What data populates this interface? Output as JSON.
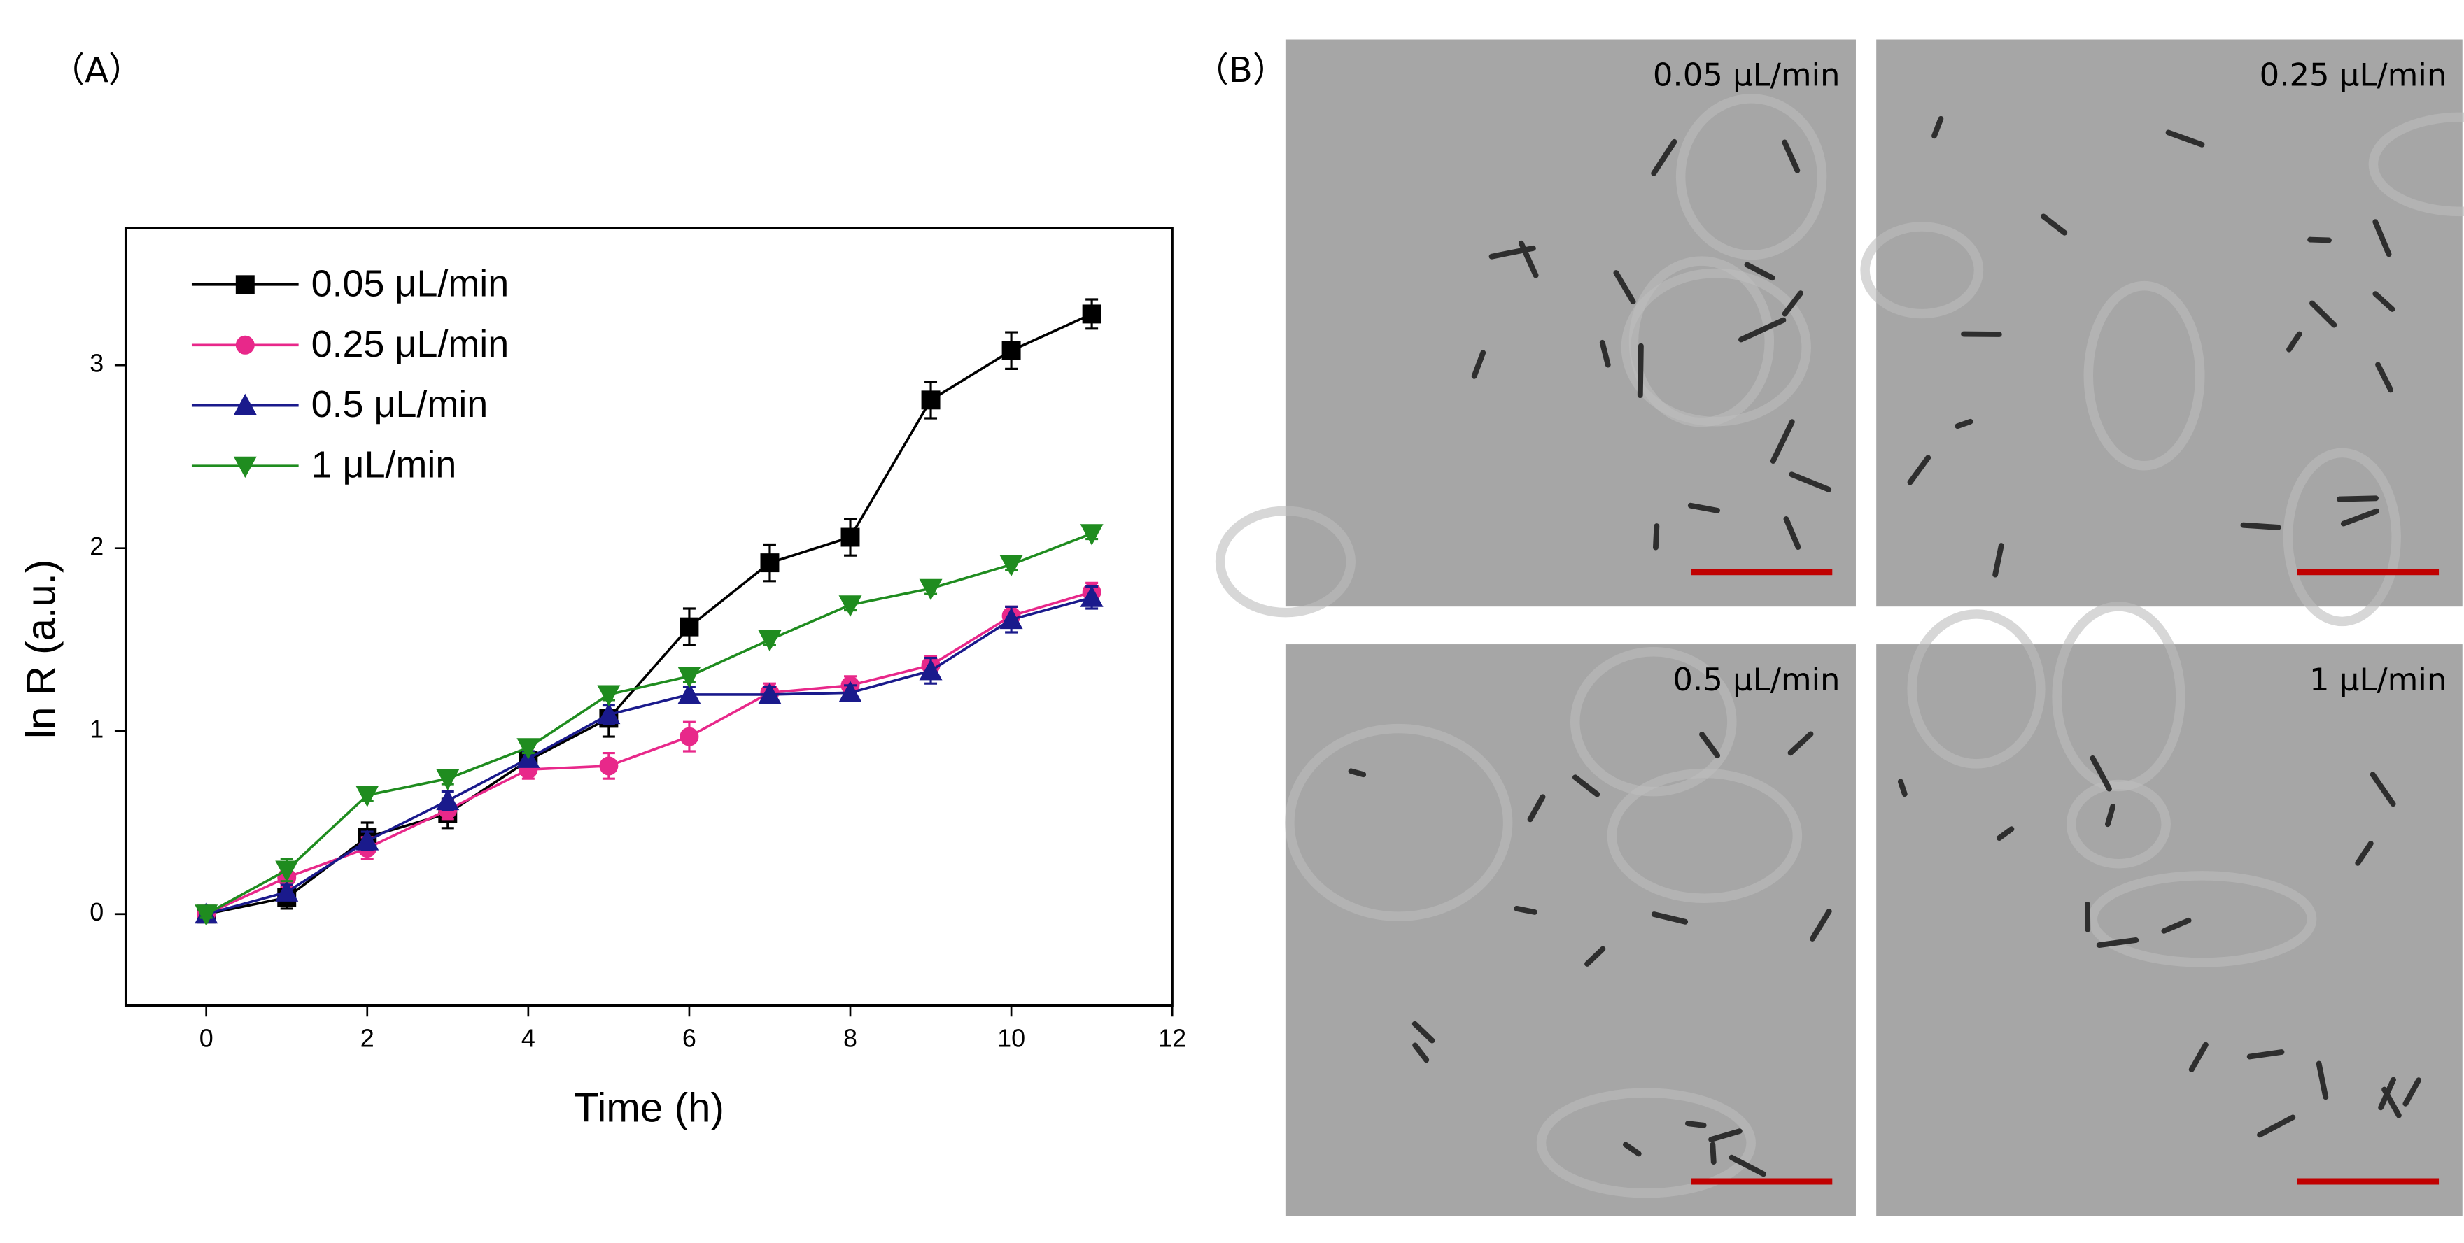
{
  "chart_data": {
    "type": "line",
    "xlabel": "Time (h)",
    "ylabel": "ln R (a.u.)",
    "x": [
      0,
      1,
      2,
      3,
      4,
      5,
      6,
      7,
      8,
      9,
      10,
      11
    ],
    "xlim": [
      -1,
      12
    ],
    "xticks": [
      0,
      2,
      4,
      6,
      8,
      10,
      12
    ],
    "ylim": [
      -0.5,
      3.75
    ],
    "yticks": [
      0,
      1,
      2,
      3
    ],
    "legend": "upper left",
    "series": [
      {
        "name": "0.05 μL/min",
        "color": "#000000",
        "marker": "square",
        "values": [
          0,
          0.09,
          0.42,
          0.55,
          0.84,
          1.07,
          1.57,
          1.92,
          2.06,
          2.81,
          3.08,
          3.28
        ],
        "errors": [
          0.03,
          0.06,
          0.08,
          0.08,
          0.04,
          0.1,
          0.1,
          0.1,
          0.1,
          0.1,
          0.1,
          0.08
        ]
      },
      {
        "name": "0.25 μL/min",
        "color": "#e8288a",
        "marker": "circle",
        "values": [
          0,
          0.2,
          0.36,
          0.57,
          0.79,
          0.81,
          0.97,
          1.21,
          1.25,
          1.36,
          1.63,
          1.76
        ],
        "errors": [
          0.02,
          0.05,
          0.06,
          0.05,
          0.05,
          0.07,
          0.08,
          0.05,
          0.05,
          0.05,
          0.05,
          0.05
        ]
      },
      {
        "name": "0.5 μL/min",
        "color": "#1a1a8c",
        "marker": "triangle-up",
        "values": [
          0,
          0.12,
          0.4,
          0.62,
          0.85,
          1.09,
          1.2,
          1.2,
          1.21,
          1.33,
          1.61,
          1.73
        ],
        "errors": [
          0.02,
          0.04,
          0.05,
          0.05,
          0.04,
          0.05,
          0.04,
          0.04,
          0.04,
          0.07,
          0.07,
          0.06
        ]
      },
      {
        "name": "1  μL/min",
        "color": "#1f8c1f",
        "marker": "triangle-down",
        "values": [
          0,
          0.24,
          0.65,
          0.74,
          0.91,
          1.2,
          1.3,
          1.5,
          1.69,
          1.78,
          1.91,
          2.08
        ],
        "errors": [
          0.02,
          0.06,
          0.03,
          0.03,
          0.03,
          0.03,
          0.03,
          0.03,
          0.03,
          0.03,
          0.03,
          0.03
        ]
      }
    ]
  },
  "figure": {
    "panel_labels": [
      "（A）",
      "（B）"
    ],
    "micrographs": [
      {
        "label": "0.05 μL/min"
      },
      {
        "label": "0.25 μL/min"
      },
      {
        "label": "0.5 μL/min"
      },
      {
        "label": "1 μL/min"
      }
    ]
  }
}
